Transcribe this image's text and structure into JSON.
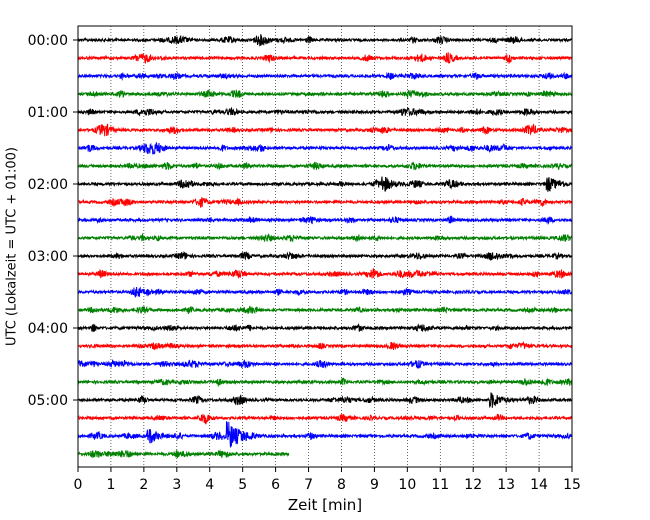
{
  "chart_data": {
    "type": "line",
    "title": "",
    "xlabel": "Zeit  [min]",
    "ylabel": "UTC (Lokalzeit = UTC + 01:00)",
    "xlim": [
      0,
      15
    ],
    "x_ticks": [
      0,
      1,
      2,
      3,
      4,
      5,
      6,
      7,
      8,
      9,
      10,
      11,
      12,
      13,
      14,
      15
    ],
    "y_ticks": [
      "00:00",
      "01:00",
      "02:00",
      "03:00",
      "04:00",
      "05:00"
    ],
    "row_interval_min": 15,
    "row_count": 24,
    "grid": "x-dotted",
    "trace_colors": [
      "#000000",
      "#ff0000",
      "#0000ff",
      "#008000"
    ],
    "last_row_end_min": 6.4,
    "events": [
      {
        "row": 23,
        "start_min": 0.0,
        "amplitude": "low"
      },
      {
        "row": 22,
        "time_min": 2.2,
        "amplitude": "medium"
      },
      {
        "row": 22,
        "time_min": 4.6,
        "amplitude": "high"
      },
      {
        "row": 20,
        "time_min": 12.6,
        "amplitude": "medium"
      },
      {
        "row": 8,
        "time_min": 9.3,
        "amplitude": "medium"
      },
      {
        "row": 8,
        "time_min": 14.3,
        "amplitude": "medium"
      }
    ]
  }
}
